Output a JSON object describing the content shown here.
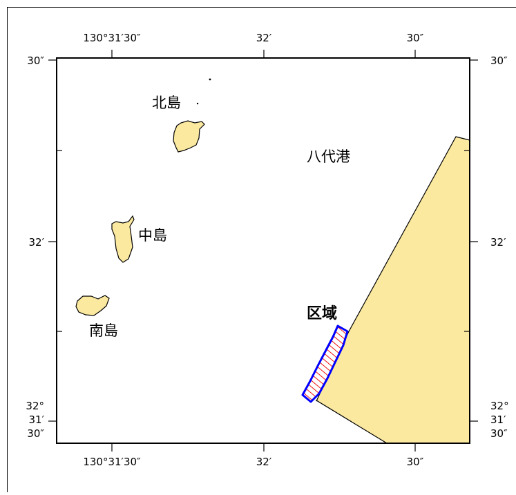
{
  "map": {
    "top_axis": [
      "130°31′30″",
      "32′",
      "30″"
    ],
    "bottom_axis": [
      "130°31′30″",
      "32′",
      "30″"
    ],
    "left_axis": [
      "30″",
      "32′",
      "32°",
      "31′",
      "30″"
    ],
    "right_axis": [
      "30″",
      "32′",
      "32°",
      "31′",
      "30″"
    ],
    "places": {
      "north_island": "北島",
      "middle_island": "中島",
      "south_island": "南島",
      "port": "八代港",
      "region": "区域"
    },
    "colors": {
      "land": "#fbe9a0",
      "land_outline": "#000000",
      "region_border": "#0000ff",
      "region_hatch": "#ee1111",
      "frame": "#000000"
    }
  }
}
